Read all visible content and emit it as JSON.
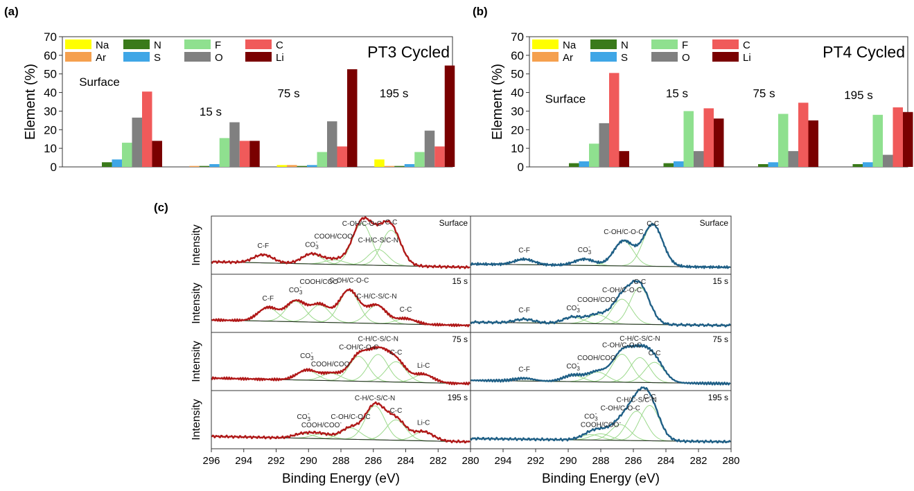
{
  "figure": {
    "panel_labels": [
      "(a)",
      "(b)",
      "(c)"
    ]
  },
  "chart_data": [
    {
      "type": "bar",
      "panel": "(a)",
      "title": "PT3 Cycled",
      "xlabel": "",
      "ylabel": "Element (%)",
      "ylim": [
        0,
        70
      ],
      "yticks": [
        0,
        10,
        20,
        30,
        40,
        50,
        60,
        70
      ],
      "grid": false,
      "legend": "top-left",
      "categories": [
        "Surface",
        "15 s",
        "75 s",
        "195 s"
      ],
      "series": [
        {
          "name": "Na",
          "color": "#ffff00",
          "values": [
            0.0,
            0.0,
            1.0,
            4.0
          ]
        },
        {
          "name": "Ar",
          "color": "#f5a04e",
          "values": [
            0.0,
            0.5,
            1.0,
            0.5
          ]
        },
        {
          "name": "N",
          "color": "#3a7a1a",
          "values": [
            2.5,
            0.5,
            0.5,
            0.5
          ]
        },
        {
          "name": "S",
          "color": "#3fa6e6",
          "values": [
            4.0,
            1.5,
            1.0,
            1.5
          ]
        },
        {
          "name": "F",
          "color": "#8fe08f",
          "values": [
            13.0,
            15.5,
            8.0,
            8.0
          ]
        },
        {
          "name": "O",
          "color": "#808080",
          "values": [
            26.5,
            24.0,
            24.5,
            19.5
          ]
        },
        {
          "name": "C",
          "color": "#f05a5a",
          "values": [
            40.5,
            14.0,
            11.0,
            11.0
          ]
        },
        {
          "name": "Li",
          "color": "#7a0000",
          "values": [
            14.0,
            14.0,
            52.5,
            54.5
          ]
        }
      ]
    },
    {
      "type": "bar",
      "panel": "(b)",
      "title": "PT4 Cycled",
      "xlabel": "",
      "ylabel": "Element (%)",
      "ylim": [
        0,
        70
      ],
      "yticks": [
        0,
        10,
        20,
        30,
        40,
        50,
        60,
        70
      ],
      "grid": false,
      "legend": "top-left",
      "categories": [
        "Surface",
        "15 s",
        "75 s",
        "195 s"
      ],
      "series": [
        {
          "name": "Na",
          "color": "#ffff00",
          "values": [
            0.0,
            0.0,
            0.0,
            0.0
          ]
        },
        {
          "name": "Ar",
          "color": "#f5a04e",
          "values": [
            0.0,
            0.0,
            0.0,
            0.0
          ]
        },
        {
          "name": "N",
          "color": "#3a7a1a",
          "values": [
            2.0,
            2.0,
            1.5,
            1.5
          ]
        },
        {
          "name": "S",
          "color": "#3fa6e6",
          "values": [
            3.0,
            3.0,
            2.5,
            2.5
          ]
        },
        {
          "name": "F",
          "color": "#8fe08f",
          "values": [
            12.5,
            30.0,
            28.5,
            28.0
          ]
        },
        {
          "name": "O",
          "color": "#808080",
          "values": [
            23.5,
            8.5,
            8.5,
            6.5
          ]
        },
        {
          "name": "C",
          "color": "#f05a5a",
          "values": [
            50.5,
            31.5,
            34.5,
            32.0
          ]
        },
        {
          "name": "Li",
          "color": "#7a0000",
          "values": [
            8.5,
            26.0,
            25.0,
            29.5
          ]
        }
      ]
    },
    {
      "type": "line",
      "panel": "(c)",
      "xlabel": "Binding Energy (eV)",
      "ylabel": "Intensity",
      "xlim": [
        296,
        280
      ],
      "xticks": [
        296,
        294,
        292,
        290,
        288,
        286,
        284,
        282,
        280
      ],
      "columns": [
        "PT3 Cycled",
        "PT4 Cycled"
      ],
      "line_colors": {
        "PT3 Cycled": "#b01818",
        "PT4 Cycled": "#1f5f86"
      },
      "component_color": "#9cd98c",
      "rows": [
        {
          "label": "Surface",
          "left": {
            "annotations": [
              "C-F",
              "CO3-",
              "COOH/COO-",
              "C-OH/C-O-C",
              "C-C",
              "C-H/C-S/C-N"
            ],
            "peaks": [
              {
                "assignment": "C-F",
                "center": 292.8,
                "amplitude": 0.18
              },
              {
                "assignment": "CO3-",
                "center": 289.8,
                "amplitude": 0.22
              },
              {
                "assignment": "COOH/COO-",
                "center": 288.4,
                "amplitude": 0.1
              },
              {
                "assignment": "C-OH/C-O-C",
                "center": 286.7,
                "amplitude": 0.92
              },
              {
                "assignment": "C-H/C-S/C-N",
                "center": 285.7,
                "amplitude": 0.35
              },
              {
                "assignment": "C-C",
                "center": 284.9,
                "amplitude": 0.78
              }
            ]
          },
          "right": {
            "annotations": [
              "C-F",
              "CO3-",
              "C-OH/C-O-C",
              "C-C"
            ],
            "peaks": [
              {
                "assignment": "C-F",
                "center": 292.7,
                "amplitude": 0.12
              },
              {
                "assignment": "CO3-",
                "center": 289.0,
                "amplitude": 0.14
              },
              {
                "assignment": "C-OH/C-O-C",
                "center": 286.6,
                "amplitude": 0.55
              },
              {
                "assignment": "C-C",
                "center": 284.8,
                "amplitude": 0.92
              }
            ]
          }
        },
        {
          "label": "15 s",
          "left": {
            "annotations": [
              "C-F",
              "CO3-",
              "COOH/COO-",
              "C-OH/C-O-C",
              "C-H/C-S/C-N",
              "C-C"
            ],
            "peaks": [
              {
                "assignment": "C-F",
                "center": 292.5,
                "amplitude": 0.3
              },
              {
                "assignment": "CO3-",
                "center": 290.8,
                "amplitude": 0.45
              },
              {
                "assignment": "COOH/COO-",
                "center": 289.3,
                "amplitude": 0.38
              },
              {
                "assignment": "C-OH/C-O-C",
                "center": 287.5,
                "amplitude": 0.72
              },
              {
                "assignment": "C-H/C-S/C-N",
                "center": 285.8,
                "amplitude": 0.4
              },
              {
                "assignment": "C-C",
                "center": 284.0,
                "amplitude": 0.12
              }
            ]
          },
          "right": {
            "annotations": [
              "C-F",
              "CO3-",
              "COOH/COO-",
              "C-OH/C-O-C",
              "C-C"
            ],
            "peaks": [
              {
                "assignment": "C-F",
                "center": 292.7,
                "amplitude": 0.08
              },
              {
                "assignment": "CO3-",
                "center": 289.7,
                "amplitude": 0.14
              },
              {
                "assignment": "COOH/COO-",
                "center": 288.2,
                "amplitude": 0.2
              },
              {
                "assignment": "C-OH/C-O-C",
                "center": 286.7,
                "amplitude": 0.55
              },
              {
                "assignment": "C-C",
                "center": 285.6,
                "amplitude": 0.82
              }
            ]
          }
        },
        {
          "label": "75 s",
          "left": {
            "annotations": [
              "COOH/COO-",
              "C-OH/C-O-C",
              "C-H/C-S/C-N",
              "CO3-",
              "C-C",
              "Li-C"
            ],
            "peaks": [
              {
                "assignment": "CO3-",
                "center": 290.1,
                "amplitude": 0.22
              },
              {
                "assignment": "COOH/COO-",
                "center": 288.6,
                "amplitude": 0.16
              },
              {
                "assignment": "C-OH/C-O-C",
                "center": 286.9,
                "amplitude": 0.55
              },
              {
                "assignment": "C-H/C-S/C-N",
                "center": 285.7,
                "amplitude": 0.6
              },
              {
                "assignment": "C-C",
                "center": 284.6,
                "amplitude": 0.45
              },
              {
                "assignment": "Li-C",
                "center": 282.9,
                "amplitude": 0.18
              }
            ]
          },
          "right": {
            "annotations": [
              "C-F",
              "CO3-",
              "COOH/COO-",
              "C-OH/C-O-C",
              "C-H/C-S/C-N",
              "C-C"
            ],
            "peaks": [
              {
                "assignment": "C-F",
                "center": 292.7,
                "amplitude": 0.06
              },
              {
                "assignment": "CO3-",
                "center": 289.7,
                "amplitude": 0.14
              },
              {
                "assignment": "COOH/COO-",
                "center": 288.2,
                "amplitude": 0.22
              },
              {
                "assignment": "C-OH/C-O-C",
                "center": 286.7,
                "amplitude": 0.62
              },
              {
                "assignment": "C-H/C-S/C-N",
                "center": 285.6,
                "amplitude": 0.55
              },
              {
                "assignment": "C-C",
                "center": 284.7,
                "amplitude": 0.45
              }
            ]
          }
        },
        {
          "label": "195 s",
          "left": {
            "annotations": [
              "COOH/COO-",
              "C-OH/C-O-C",
              "C-H/C-S/C-N",
              "CO3-",
              "C-C",
              "Li-C"
            ],
            "peaks": [
              {
                "assignment": "CO3-",
                "center": 290.3,
                "amplitude": 0.1
              },
              {
                "assignment": "COOH/COO-",
                "center": 289.2,
                "amplitude": 0.1
              },
              {
                "assignment": "C-OH/C-O-C",
                "center": 287.4,
                "amplitude": 0.25
              },
              {
                "assignment": "C-H/C-S/C-N",
                "center": 285.9,
                "amplitude": 0.75
              },
              {
                "assignment": "C-C",
                "center": 284.6,
                "amplitude": 0.45
              },
              {
                "assignment": "Li-C",
                "center": 282.9,
                "amplitude": 0.2
              }
            ]
          },
          "right": {
            "annotations": [
              "COOH/COO-",
              "CO3-",
              "C-OH/C-O-C",
              "C-H/C-S/C-N",
              "C-C"
            ],
            "peaks": [
              {
                "assignment": "CO3-",
                "center": 288.6,
                "amplitude": 0.12
              },
              {
                "assignment": "COOH/COO-",
                "center": 288.0,
                "amplitude": 0.14
              },
              {
                "assignment": "C-OH/C-O-C",
                "center": 286.8,
                "amplitude": 0.35
              },
              {
                "assignment": "C-H/C-S/C-N",
                "center": 285.8,
                "amplitude": 0.65
              },
              {
                "assignment": "C-C",
                "center": 285.0,
                "amplitude": 0.78
              }
            ]
          }
        }
      ]
    }
  ]
}
